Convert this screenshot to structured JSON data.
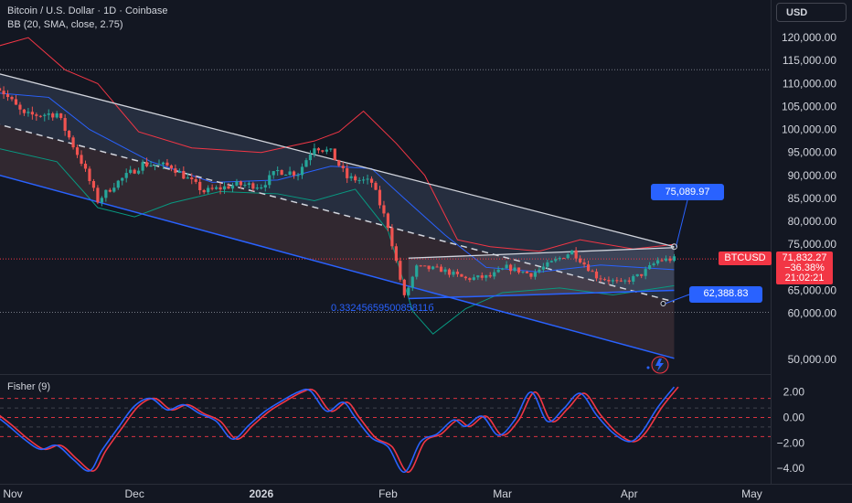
{
  "header": {
    "symbol_line": "Bitcoin / U.S. Dollar · 1D · Coinbase",
    "indicator": "BB (20, SMA, close, 2.75)",
    "currency_button": "USD"
  },
  "fisher_panel": {
    "label": "Fisher (9)"
  },
  "price_tags": {
    "upper_callout": "75,089.97",
    "lower_callout": "62,388.83",
    "symbol_tag": "BTCUSD",
    "last_price": "71,832.27",
    "change_pct": "−36.38%",
    "countdown": "21:02:21"
  },
  "annotation": {
    "fib_ratio": "0.3324565950085811б"
  },
  "colors": {
    "background": "#131722",
    "up_candle": "#26a69a",
    "down_candle": "#ef5350",
    "bb_upper": "#f23645",
    "bb_lower": "#089981",
    "bb_basis": "#2962ff",
    "channel_top": "#d1d4dc",
    "channel_bottom": "#2962ff",
    "fisher_line": "#2962ff",
    "fisher_trigger": "#f23645",
    "callout": "#2962ff"
  },
  "chart_data": [
    {
      "type": "candlestick",
      "title": "Bitcoin / U.S. Dollar · 1D · Coinbase",
      "x_ticks": [
        "Nov",
        "Dec",
        "2026",
        "Feb",
        "Mar",
        "Apr",
        "May"
      ],
      "y_ticks": [
        120000,
        115000,
        110000,
        105000,
        100000,
        95000,
        90000,
        85000,
        80000,
        75000,
        65000,
        60000,
        50000
      ],
      "ylim": [
        47000,
        123000
      ],
      "price_path": [
        [
          "2025-10-28",
          110000
        ],
        [
          "2025-11-04",
          103000
        ],
        [
          "2025-11-12",
          103500
        ],
        [
          "2025-11-18",
          93000
        ],
        [
          "2025-11-22",
          84500
        ],
        [
          "2025-11-26",
          88000
        ],
        [
          "2025-12-03",
          92500
        ],
        [
          "2025-12-10",
          92000
        ],
        [
          "2025-12-18",
          86500
        ],
        [
          "2025-12-26",
          88000
        ],
        [
          "2026-01-01",
          87800
        ],
        [
          "2026-01-05",
          91000
        ],
        [
          "2026-01-10",
          90500
        ],
        [
          "2026-01-14",
          96500
        ],
        [
          "2026-01-18",
          95000
        ],
        [
          "2026-01-22",
          89500
        ],
        [
          "2026-01-28",
          88500
        ],
        [
          "2026-02-01",
          79000
        ],
        [
          "2026-02-05",
          63500
        ],
        [
          "2026-02-08",
          70000
        ],
        [
          "2026-02-14",
          69500
        ],
        [
          "2026-02-20",
          67500
        ],
        [
          "2026-02-26",
          68000
        ],
        [
          "2026-03-02",
          70000
        ],
        [
          "2026-03-08",
          68500
        ],
        [
          "2026-03-14",
          71500
        ],
        [
          "2026-03-18",
          73500
        ],
        [
          "2026-03-24",
          68000
        ],
        [
          "2026-03-30",
          66500
        ],
        [
          "2026-04-04",
          68500
        ],
        [
          "2026-04-08",
          71500
        ],
        [
          "2026-04-12",
          71832
        ]
      ],
      "bollinger": {
        "upper": [
          [
            "2025-10-28",
            118000
          ],
          [
            "2025-11-05",
            120000
          ],
          [
            "2025-11-14",
            113000
          ],
          [
            "2025-11-22",
            110000
          ],
          [
            "2025-12-02",
            99500
          ],
          [
            "2025-12-15",
            96000
          ],
          [
            "2026-01-01",
            95000
          ],
          [
            "2026-01-14",
            97500
          ],
          [
            "2026-01-20",
            99500
          ],
          [
            "2026-01-26",
            104000
          ],
          [
            "2026-02-03",
            97000
          ],
          [
            "2026-02-10",
            90000
          ],
          [
            "2026-02-18",
            76000
          ],
          [
            "2026-02-26",
            74500
          ],
          [
            "2026-03-10",
            73500
          ],
          [
            "2026-03-20",
            76000
          ],
          [
            "2026-04-02",
            74000
          ],
          [
            "2026-04-12",
            75000
          ]
        ],
        "basis": [
          [
            "2025-10-28",
            108000
          ],
          [
            "2025-11-10",
            107000
          ],
          [
            "2025-11-20",
            100000
          ],
          [
            "2025-12-05",
            93000
          ],
          [
            "2025-12-20",
            88500
          ],
          [
            "2026-01-05",
            89000
          ],
          [
            "2026-01-18",
            92000
          ],
          [
            "2026-01-28",
            91500
          ],
          [
            "2026-02-05",
            85000
          ],
          [
            "2026-02-15",
            77000
          ],
          [
            "2026-02-25",
            70000
          ],
          [
            "2026-03-10",
            69000
          ],
          [
            "2026-03-25",
            70500
          ],
          [
            "2026-04-12",
            69500
          ]
        ],
        "lower": [
          [
            "2025-10-28",
            96000
          ],
          [
            "2025-11-12",
            93000
          ],
          [
            "2025-11-22",
            83000
          ],
          [
            "2025-12-01",
            81000
          ],
          [
            "2025-12-10",
            84000
          ],
          [
            "2025-12-22",
            86500
          ],
          [
            "2026-01-05",
            86000
          ],
          [
            "2026-01-14",
            84500
          ],
          [
            "2026-01-24",
            87000
          ],
          [
            "2026-02-01",
            78000
          ],
          [
            "2026-02-07",
            60500
          ],
          [
            "2026-02-12",
            55500
          ],
          [
            "2026-02-20",
            61000
          ],
          [
            "2026-03-01",
            64500
          ],
          [
            "2026-03-15",
            65500
          ],
          [
            "2026-03-28",
            64000
          ],
          [
            "2026-04-12",
            66000
          ]
        ]
      },
      "regression_channel": {
        "upper": [
          [
            "2025-10-25",
            113000
          ],
          [
            "2026-04-12",
            74500
          ]
        ],
        "center": [
          [
            "2025-10-25",
            102000
          ],
          [
            "2026-04-12",
            62500
          ]
        ],
        "lower": [
          [
            "2025-10-25",
            91000
          ],
          [
            "2026-04-12",
            50200
          ]
        ]
      },
      "range_box": {
        "start": "2026-02-06",
        "end": "2026-04-12",
        "top_start": 72000,
        "top_end": 74300,
        "bottom_start": 63200,
        "bottom_end": 65000
      },
      "horizontal_lines": [
        113000,
        71832,
        60200
      ]
    },
    {
      "type": "line",
      "title": "Fisher (9)",
      "ylim": [
        -4.6,
        3.2
      ],
      "y_ticks": [
        2.0,
        0.0,
        -2.0,
        -4.0
      ],
      "bands": [
        1.5,
        0.75,
        0.0,
        -0.75,
        -1.5
      ],
      "series": [
        {
          "values": [
            [
              "2025-10-27",
              0.4
            ],
            [
              "2025-10-31",
              -0.6
            ],
            [
              "2025-11-04",
              -1.7
            ],
            [
              "2025-11-08",
              -2.5
            ],
            [
              "2025-11-12",
              -2.2
            ],
            [
              "2025-11-16",
              -3.3
            ],
            [
              "2025-11-20",
              -4.2
            ],
            [
              "2025-11-23",
              -2.6
            ],
            [
              "2025-11-27",
              -0.8
            ],
            [
              "2025-12-01",
              0.9
            ],
            [
              "2025-12-05",
              1.5
            ],
            [
              "2025-12-09",
              0.6
            ],
            [
              "2025-12-13",
              1.0
            ],
            [
              "2025-12-17",
              0.3
            ],
            [
              "2025-12-21",
              -0.3
            ],
            [
              "2025-12-25",
              -1.7
            ],
            [
              "2025-12-29",
              -0.6
            ],
            [
              "2026-01-02",
              0.5
            ],
            [
              "2026-01-06",
              1.3
            ],
            [
              "2026-01-10",
              2.0
            ],
            [
              "2026-01-13",
              2.1
            ],
            [
              "2026-01-17",
              0.5
            ],
            [
              "2026-01-21",
              1.2
            ],
            [
              "2026-01-24",
              0.0
            ],
            [
              "2026-01-28",
              -1.6
            ],
            [
              "2026-02-01",
              -2.3
            ],
            [
              "2026-02-05",
              -4.3
            ],
            [
              "2026-02-09",
              -1.9
            ],
            [
              "2026-02-13",
              -1.3
            ],
            [
              "2026-02-17",
              -0.2
            ],
            [
              "2026-02-20",
              -0.7
            ],
            [
              "2026-02-24",
              0.1
            ],
            [
              "2026-02-28",
              -1.4
            ],
            [
              "2026-03-04",
              -0.2
            ],
            [
              "2026-03-08",
              2.0
            ],
            [
              "2026-03-12",
              -0.3
            ],
            [
              "2026-03-16",
              0.7
            ],
            [
              "2026-03-20",
              1.9
            ],
            [
              "2026-03-24",
              0.2
            ],
            [
              "2026-03-28",
              -1.2
            ],
            [
              "2026-04-01",
              -1.9
            ],
            [
              "2026-04-04",
              -1.2
            ],
            [
              "2026-04-08",
              0.8
            ],
            [
              "2026-04-12",
              2.4
            ]
          ]
        },
        {
          "lag": 1
        }
      ]
    }
  ]
}
